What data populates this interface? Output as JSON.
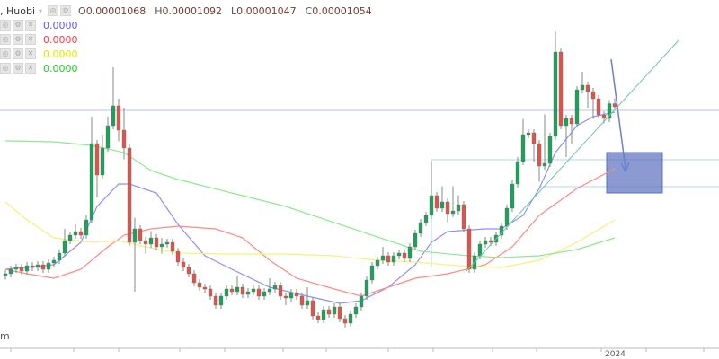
{
  "header": {
    "exchange": ", Huobi",
    "open_label": "O",
    "open": "0.00001068",
    "high_label": "H",
    "high": "0.00001092",
    "low_label": "L",
    "low": "0.00001047",
    "close_label": "C",
    "close": "0.00001054"
  },
  "indicators": [
    {
      "value": "0.0000",
      "color": "#5b5bff"
    },
    {
      "value": "0.0000",
      "color": "#ff3b3b"
    },
    {
      "value": "0.0000",
      "color": "#e6e600"
    },
    {
      "value": "0.0000",
      "color": "#22cc22"
    }
  ],
  "watermark_fragment": "m",
  "x_axis": {
    "labels": [
      "2024"
    ]
  },
  "colors": {
    "up": "#1f9e5c",
    "down": "#e0524c",
    "wick": "#7f8f82"
  },
  "chart_data": {
    "type": "candlestick",
    "title": "",
    "xlabel": "",
    "ylabel": "",
    "grid": false,
    "ohlc": [
      [
        3e-06,
        3.26e-06,
        2.84e-06,
        3.1e-06
      ],
      [
        3.1e-06,
        3.46e-06,
        2.94e-06,
        3.3e-06
      ],
      [
        3.3e-06,
        3.54e-06,
        3.14e-06,
        3.38e-06
      ],
      [
        3.38e-06,
        3.54e-06,
        3.06e-06,
        3.22e-06
      ],
      [
        3.22e-06,
        3.62e-06,
        3.06e-06,
        3.46e-06
      ],
      [
        3.46e-06,
        3.62e-06,
        3.22e-06,
        3.38e-06
      ],
      [
        3.38e-06,
        3.66e-06,
        3.22e-06,
        3.5e-06
      ],
      [
        3.5e-06,
        3.66e-06,
        3.14e-06,
        3.3e-06
      ],
      [
        3.3e-06,
        3.74e-06,
        3.14e-06,
        3.58e-06
      ],
      [
        3.58e-06,
        3.86e-06,
        3.42e-06,
        3.7e-06
      ],
      [
        3.7e-06,
        4.18e-06,
        3.54e-06,
        4.02e-06
      ],
      [
        4.02e-06,
        5.1e-06,
        3.86e-06,
        4.58e-06
      ],
      [
        4.58e-06,
        4.98e-06,
        4.42e-06,
        4.82e-06
      ],
      [
        4.82e-06,
        5.3e-06,
        4.66e-06,
        4.98e-06
      ],
      [
        4.98e-06,
        5.14e-06,
        4.66e-06,
        4.82e-06
      ],
      [
        4.82e-06,
        5.7e-06,
        4.66e-06,
        5.5e-06
      ],
      [
        5.5e-06,
        1.01e-05,
        5.34e-06,
        8.9e-06
      ],
      [
        8.9e-06,
        9.06e-06,
        6.5e-06,
        7.5e-06
      ],
      [
        7.5e-06,
        9.3e-06,
        7.34e-06,
        8.7e-06
      ],
      [
        8.7e-06,
        1.01e-05,
        8.54e-06,
        9.7e-06
      ],
      [
        9.7e-06,
        1.23e-05,
        9.54e-06,
        1.058e-05
      ],
      [
        1.058e-05,
        1.09e-05,
        9e-06,
        9.5e-06
      ],
      [
        9.5e-06,
        1.05e-05,
        8.2e-06,
        8.7e-06
      ],
      [
        8.7e-06,
        8.86e-06,
        4.34e-06,
        4.5e-06
      ],
      [
        4.5e-06,
        5.6e-06,
        2.3e-06,
        5.1e-06
      ],
      [
        5.1e-06,
        5.26e-06,
        4.42e-06,
        4.58e-06
      ],
      [
        4.58e-06,
        4.74e-06,
        4e-06,
        4.42e-06
      ],
      [
        4.42e-06,
        5e-06,
        4.26e-06,
        4.7e-06
      ],
      [
        4.7e-06,
        4.86e-06,
        4.14e-06,
        4.3e-06
      ],
      [
        4.3e-06,
        4.7e-06,
        4e-06,
        4.42e-06
      ],
      [
        4.42e-06,
        4.66e-06,
        4.26e-06,
        4.5e-06
      ],
      [
        4.5e-06,
        4.66e-06,
        3.94e-06,
        4.1e-06
      ],
      [
        4.1e-06,
        4.26e-06,
        3.46e-06,
        3.62e-06
      ],
      [
        3.62e-06,
        3.78e-06,
        3.22e-06,
        3.38e-06
      ],
      [
        3.38e-06,
        3.54e-06,
        2.94e-06,
        3.1e-06
      ],
      [
        3.1e-06,
        3.26e-06,
        2.54e-06,
        2.7e-06
      ],
      [
        2.7e-06,
        2.86e-06,
        2.34e-06,
        2.5e-06
      ],
      [
        2.5e-06,
        2.66e-06,
        2.26e-06,
        2.42e-06
      ],
      [
        2.42e-06,
        2.58e-06,
        1.94e-06,
        2.1e-06
      ],
      [
        2.1e-06,
        2.26e-06,
        1.54e-06,
        1.7e-06
      ],
      [
        1.7e-06,
        2.26e-06,
        1.54e-06,
        2.1e-06
      ],
      [
        2.1e-06,
        2.58e-06,
        1.94e-06,
        2.42e-06
      ],
      [
        2.42e-06,
        2.58e-06,
        2.14e-06,
        2.3e-06
      ],
      [
        2.3e-06,
        3e-06,
        2.14e-06,
        2.5e-06
      ],
      [
        2.5e-06,
        2.66e-06,
        2.02e-06,
        2.18e-06
      ],
      [
        2.18e-06,
        2.46e-06,
        2.02e-06,
        2.3e-06
      ],
      [
        2.3e-06,
        2.58e-06,
        2.14e-06,
        2.42e-06
      ],
      [
        2.42e-06,
        2.58e-06,
        1.94e-06,
        2.1e-06
      ],
      [
        2.1e-06,
        2.46e-06,
        1.94e-06,
        2.3e-06
      ],
      [
        2.3e-06,
        2.9e-06,
        2.14e-06,
        2.42e-06
      ],
      [
        2.42e-06,
        2.74e-06,
        2.26e-06,
        2.58e-06
      ],
      [
        2.58e-06,
        2.74e-06,
        1.94e-06,
        2.1e-06
      ],
      [
        2.1e-06,
        2.26e-06,
        1.7e-06,
        2.02e-06
      ],
      [
        2.02e-06,
        2.42e-06,
        1.86e-06,
        2.26e-06
      ],
      [
        2.26e-06,
        2.42e-06,
        1.94e-06,
        2.1e-06
      ],
      [
        2.1e-06,
        2.26e-06,
        1.54e-06,
        1.7e-06
      ],
      [
        1.7e-06,
        2.5e-06,
        1.54e-06,
        1.9e-06
      ],
      [
        1.9e-06,
        2.06e-06,
        1.06e-06,
        1.22e-06
      ],
      [
        1.22e-06,
        1.38e-06,
        9e-07,
        1.06e-06
      ],
      [
        1.06e-06,
        1.66e-06,
        9e-07,
        1.5e-06
      ],
      [
        1.5e-06,
        1.66e-06,
        1.14e-06,
        1.3e-06
      ],
      [
        1.3e-06,
        1.78e-06,
        1.14e-06,
        1.62e-06
      ],
      [
        1.62e-06,
        1.78e-06,
        9.4e-07,
        1.1e-06
      ],
      [
        1.1e-06,
        1.26e-06,
        7e-07,
        9e-07
      ],
      [
        9e-07,
        1.46e-06,
        7.4e-07,
        1.3e-06
      ],
      [
        1.3e-06,
        1.78e-06,
        1.14e-06,
        1.62e-06
      ],
      [
        1.62e-06,
        2.26e-06,
        1.46e-06,
        2.1e-06
      ],
      [
        2.1e-06,
        2.98e-06,
        1.94e-06,
        2.82e-06
      ],
      [
        2.82e-06,
        3.62e-06,
        2.66e-06,
        3.46e-06
      ],
      [
        3.46e-06,
        3.86e-06,
        3.3e-06,
        3.7e-06
      ],
      [
        3.7e-06,
        4.3e-06,
        3.54e-06,
        3.9e-06
      ],
      [
        3.9e-06,
        4.06e-06,
        3.46e-06,
        3.62e-06
      ],
      [
        3.62e-06,
        4.06e-06,
        3.46e-06,
        3.9e-06
      ],
      [
        3.9e-06,
        4.18e-06,
        3.74e-06,
        4.02e-06
      ],
      [
        4.02e-06,
        4.18e-06,
        3.62e-06,
        3.78e-06
      ],
      [
        3.78e-06,
        4.46e-06,
        3.62e-06,
        4.3e-06
      ],
      [
        4.3e-06,
        5.06e-06,
        4.14e-06,
        4.9e-06
      ],
      [
        4.9e-06,
        5.54e-06,
        4.74e-06,
        5.38e-06
      ],
      [
        5.38e-06,
        5.86e-06,
        5.22e-06,
        5.7e-06
      ],
      [
        5.7e-06,
        8.1e-06,
        5.54e-06,
        6.58e-06
      ],
      [
        6.58e-06,
        6.74e-06,
        5.86e-06,
        6.02e-06
      ],
      [
        6.02e-06,
        7e-06,
        5.86e-06,
        6.3e-06
      ],
      [
        6.3e-06,
        6.46e-06,
        5.4e-06,
        5.78e-06
      ],
      [
        5.78e-06,
        7e-06,
        5.62e-06,
        5.9e-06
      ],
      [
        5.9e-06,
        6.6e-06,
        5.74e-06,
        6.18e-06
      ],
      [
        6.18e-06,
        6.34e-06,
        4.94e-06,
        5.1e-06
      ],
      [
        5.1e-06,
        5.26e-06,
        3.14e-06,
        3.3e-06
      ],
      [
        3.3e-06,
        4.06e-06,
        3.14e-06,
        3.9e-06
      ],
      [
        3.9e-06,
        4.58e-06,
        3.74e-06,
        4.42e-06
      ],
      [
        4.42e-06,
        4.74e-06,
        4.26e-06,
        4.58e-06
      ],
      [
        4.58e-06,
        4.74e-06,
        4.34e-06,
        4.5e-06
      ],
      [
        4.5e-06,
        4.98e-06,
        4.34e-06,
        4.82e-06
      ],
      [
        4.82e-06,
        5.38e-06,
        4.66e-06,
        5.22e-06
      ],
      [
        5.22e-06,
        6.18e-06,
        5.06e-06,
        6.02e-06
      ],
      [
        6.02e-06,
        7.26e-06,
        5.86e-06,
        7.1e-06
      ],
      [
        7.1e-06,
        8.3e-06,
        6.94e-06,
        8.1e-06
      ],
      [
        8.1e-06,
        1e-05,
        7.94e-06,
        9.3e-06
      ],
      [
        9.3e-06,
        9.54e-06,
        9.14e-06,
        9.38e-06
      ],
      [
        9.38e-06,
        9.54e-06,
        8.1e-06,
        8.9e-06
      ],
      [
        8.9e-06,
        9.06e-06,
        7.2e-06,
        7.9e-06
      ],
      [
        7.9e-06,
        1.02e-05,
        7.74e-06,
        8.02e-06
      ],
      [
        8.02e-06,
        9.38e-06,
        7.86e-06,
        9.22e-06
      ],
      [
        9.22e-06,
        1.39e-05,
        9.06e-06,
        1.298e-05
      ],
      [
        1.298e-05,
        1.314e-05,
        9.54e-06,
        9.7e-06
      ],
      [
        9.7e-06,
        1.018e-05,
        8.3e-06,
        1.002e-05
      ],
      [
        1.002e-05,
        1.018e-05,
        8.9e-06,
        9.78e-06
      ],
      [
        9.78e-06,
        1.146e-05,
        9.62e-06,
        1.13e-05
      ],
      [
        1.13e-05,
        1.21e-05,
        1.114e-05,
        1.15e-05
      ],
      [
        1.15e-05,
        1.166e-05,
        1.05e-05,
        1.122e-05
      ],
      [
        1.122e-05,
        1.138e-05,
        1e-05,
        1.09e-05
      ],
      [
        1.09e-05,
        1.106e-05,
        1.002e-05,
        1.018e-05
      ],
      [
        1.018e-05,
        1.034e-05,
        9.8e-06,
        1.002e-05
      ],
      [
        1.002e-05,
        1.084e-05,
        9.86e-06,
        1.068e-05
      ],
      [
        1.068e-05,
        1.092e-05,
        1.047e-05,
        1.054e-05
      ]
    ],
    "moving_averages": [
      {
        "color": "#8f8fff",
        "points": [
          [
            0,
            3.3e-06
          ],
          [
            9,
            3.5e-06
          ],
          [
            14,
            4.5e-06
          ],
          [
            17,
            6.1e-06
          ],
          [
            21,
            7.1e-06
          ],
          [
            23,
            7.1e-06
          ],
          [
            28,
            6.7e-06
          ],
          [
            32,
            5.3e-06
          ],
          [
            37,
            3.9e-06
          ],
          [
            42,
            3.3e-06
          ],
          [
            49,
            2.5e-06
          ],
          [
            56,
            2.1e-06
          ],
          [
            62,
            1.78e-06
          ],
          [
            66,
            1.9e-06
          ],
          [
            71,
            2.5e-06
          ],
          [
            76,
            3.5e-06
          ],
          [
            79,
            4.5e-06
          ],
          [
            82,
            4.98e-06
          ],
          [
            89,
            5.1e-06
          ],
          [
            92,
            5.1e-06
          ],
          [
            96,
            5.7e-06
          ],
          [
            99,
            6.9e-06
          ],
          [
            102,
            8.5e-06
          ],
          [
            106,
            9.7e-06
          ],
          [
            109,
            1.01e-05
          ],
          [
            113,
            1.03e-05
          ]
        ]
      },
      {
        "color": "#ff8a80",
        "points": [
          [
            0,
            3.3e-06
          ],
          [
            4,
            3.1e-06
          ],
          [
            9,
            2.9e-06
          ],
          [
            14,
            3.3e-06
          ],
          [
            19,
            4.3e-06
          ],
          [
            22,
            4.82e-06
          ],
          [
            27,
            5.1e-06
          ],
          [
            32,
            5.22e-06
          ],
          [
            39,
            5.1e-06
          ],
          [
            44,
            4.7e-06
          ],
          [
            49,
            3.7e-06
          ],
          [
            54,
            2.9e-06
          ],
          [
            61,
            2.42e-06
          ],
          [
            66,
            2.1e-06
          ],
          [
            71,
            2.5e-06
          ],
          [
            76,
            2.9e-06
          ],
          [
            82,
            3.1e-06
          ],
          [
            89,
            3.5e-06
          ],
          [
            94,
            4.3e-06
          ],
          [
            99,
            5.7e-06
          ],
          [
            106,
            6.9e-06
          ],
          [
            113,
            7.78e-06
          ]
        ]
      },
      {
        "color": "#f2f27a",
        "points": [
          [
            0,
            6.3e-06
          ],
          [
            4,
            5.5e-06
          ],
          [
            9,
            4.7e-06
          ],
          [
            16,
            4.5e-06
          ],
          [
            21,
            4.58e-06
          ],
          [
            26,
            4.3e-06
          ],
          [
            32,
            4.02e-06
          ],
          [
            42,
            3.98e-06
          ],
          [
            52,
            3.98e-06
          ],
          [
            61,
            3.9e-06
          ],
          [
            69,
            3.7e-06
          ],
          [
            76,
            3.62e-06
          ],
          [
            86,
            3.42e-06
          ],
          [
            92,
            3.38e-06
          ],
          [
            99,
            3.7e-06
          ],
          [
            106,
            4.5e-06
          ],
          [
            113,
            5.5e-06
          ]
        ]
      },
      {
        "color": "#8fe88f",
        "points": [
          [
            0,
            9.02e-06
          ],
          [
            9,
            8.98e-06
          ],
          [
            16,
            8.82e-06
          ],
          [
            22,
            8.5e-06
          ],
          [
            27,
            7.7e-06
          ],
          [
            32,
            7.3e-06
          ],
          [
            42,
            6.7e-06
          ],
          [
            52,
            6.1e-06
          ],
          [
            62,
            5.3e-06
          ],
          [
            71,
            4.58e-06
          ],
          [
            77,
            4.1e-06
          ],
          [
            86,
            3.9e-06
          ],
          [
            92,
            3.82e-06
          ],
          [
            99,
            3.9e-06
          ],
          [
            106,
            4.18e-06
          ],
          [
            113,
            4.7e-06
          ]
        ]
      }
    ]
  }
}
